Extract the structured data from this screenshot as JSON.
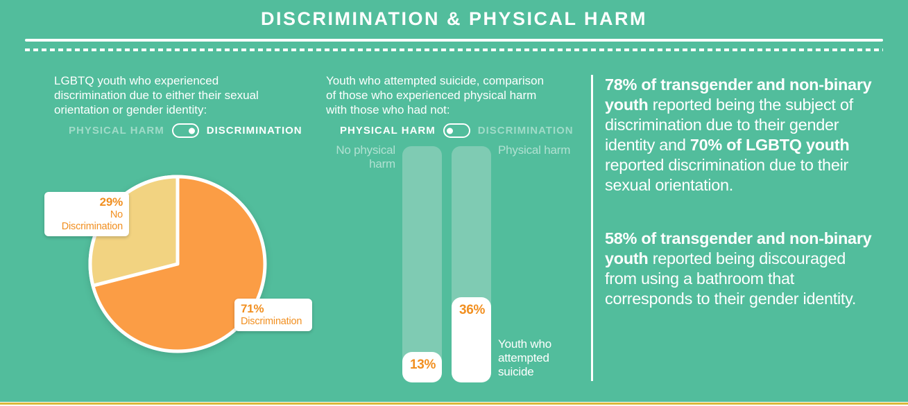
{
  "colors": {
    "background": "#52BD9C",
    "bar_track": "#7FCBB3",
    "pie_discrimination": "#FB9D45",
    "pie_no_discrimination": "#F2D381",
    "accent_orange_text": "#F18F20",
    "bottom_line_gold": "#D9B93C",
    "white": "#FFFFFF"
  },
  "header": {
    "title": "DISCRIMINATION & PHYSICAL HARM"
  },
  "left_panel": {
    "intro": "LGBTQ youth who experienced\ndiscrimination due to either their sexual\norientation or gender identity:",
    "toggle": {
      "left_label": "PHYSICAL HARM",
      "right_label": "DISCRIMINATION",
      "active": "right"
    },
    "pie_labels": {
      "no_discrimination": {
        "value": "29%",
        "label": "No Discrimination"
      },
      "discrimination": {
        "value": "71%",
        "label": "Discrimination"
      }
    }
  },
  "middle_panel": {
    "intro": "Youth who attempted suicide, comparison\nof those who experienced physical harm\nwith those who had not:",
    "toggle": {
      "left_label": "PHYSICAL HARM",
      "right_label": "DISCRIMINATION",
      "active": "left"
    },
    "left_bar_label": "No physical\nharm",
    "right_bar_label": "Physical harm",
    "bars": [
      {
        "name": "No physical harm",
        "value_label": "13%",
        "height": "13%"
      },
      {
        "name": "Physical harm",
        "value_label": "36%",
        "height": "36%"
      }
    ],
    "bars_caption": "Youth who\nattempted\nsuicide"
  },
  "right_panel": {
    "para1": [
      {
        "text": "78% of transgender and non-binary youth",
        "bold": true
      },
      {
        "text": " reported being the subject of discrimination due to their gender identity and ",
        "bold": false
      },
      {
        "text": "70% of LGBTQ youth",
        "bold": true
      },
      {
        "text": " reported discrimination due to their sexual orientation.",
        "bold": false
      }
    ],
    "para2": [
      {
        "text": "58% of transgender and non-binary youth",
        "bold": true
      },
      {
        "text": " reported being discouraged from using a bathroom that corresponds to their gender identity.",
        "bold": false
      }
    ]
  },
  "chart_data": [
    {
      "type": "pie",
      "title": "LGBTQ youth who experienced discrimination due to either their sexual orientation or gender identity",
      "categories": [
        "Discrimination",
        "No Discrimination"
      ],
      "values": [
        71,
        29
      ],
      "unit": "percent",
      "colors": [
        "#FB9D45",
        "#F2D381"
      ],
      "start_angle_deg": 0,
      "direction": "clockwise",
      "legend_position": "data-labels"
    },
    {
      "type": "bar",
      "title": "Youth who attempted suicide, comparison of those who experienced physical harm with those who had not",
      "categories": [
        "No physical harm",
        "Physical harm"
      ],
      "values": [
        13,
        36
      ],
      "unit": "percent",
      "ylim": [
        0,
        100
      ],
      "ylabel": "Youth who attempted suicide",
      "grid": false
    }
  ]
}
